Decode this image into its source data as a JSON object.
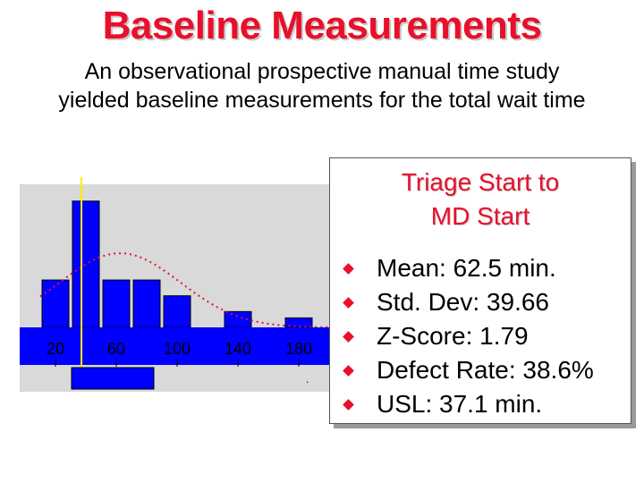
{
  "title": "Baseline Measurements",
  "subtitle": {
    "line1": "An observational prospective manual time study",
    "line2": "yielded baseline measurements for the total wait time"
  },
  "stats_box": {
    "heading_line1": "Triage Start to",
    "heading_line2": "MD Start",
    "items": [
      "Mean: 62.5 min.",
      "Std. Dev: 39.66",
      "Z-Score: 1.79",
      "Defect Rate: 38.6%",
      "USL: 37.1 min."
    ]
  },
  "colors": {
    "title": "#e8102a",
    "bar": "#0000ff",
    "usl_line": "#ffeb00",
    "curve": "#e8102a",
    "plot_bg": "#d9d9d9",
    "bullet": "#e8102a"
  },
  "chart_data": {
    "type": "bar",
    "title": "",
    "xlabel": "",
    "ylabel": "",
    "xlim": [
      10,
      200
    ],
    "x_ticks": [
      "20",
      "60",
      "100",
      "140",
      "180"
    ],
    "x_tick_values": [
      20,
      60,
      100,
      140,
      180
    ],
    "bin_width": 20,
    "bins": [
      {
        "x": 20,
        "value": 3
      },
      {
        "x": 40,
        "value": 8
      },
      {
        "x": 60,
        "value": 3
      },
      {
        "x": 80,
        "value": 3
      },
      {
        "x": 100,
        "value": 2
      },
      {
        "x": 140,
        "value": 1
      },
      {
        "x": 180,
        "value": 0.6
      }
    ],
    "ylim": [
      0,
      8.5
    ],
    "usl": 37.1,
    "normal_curve": {
      "mean": 62.5,
      "sd": 39.66,
      "style": "dotted"
    },
    "grid": false,
    "legend": "none"
  }
}
